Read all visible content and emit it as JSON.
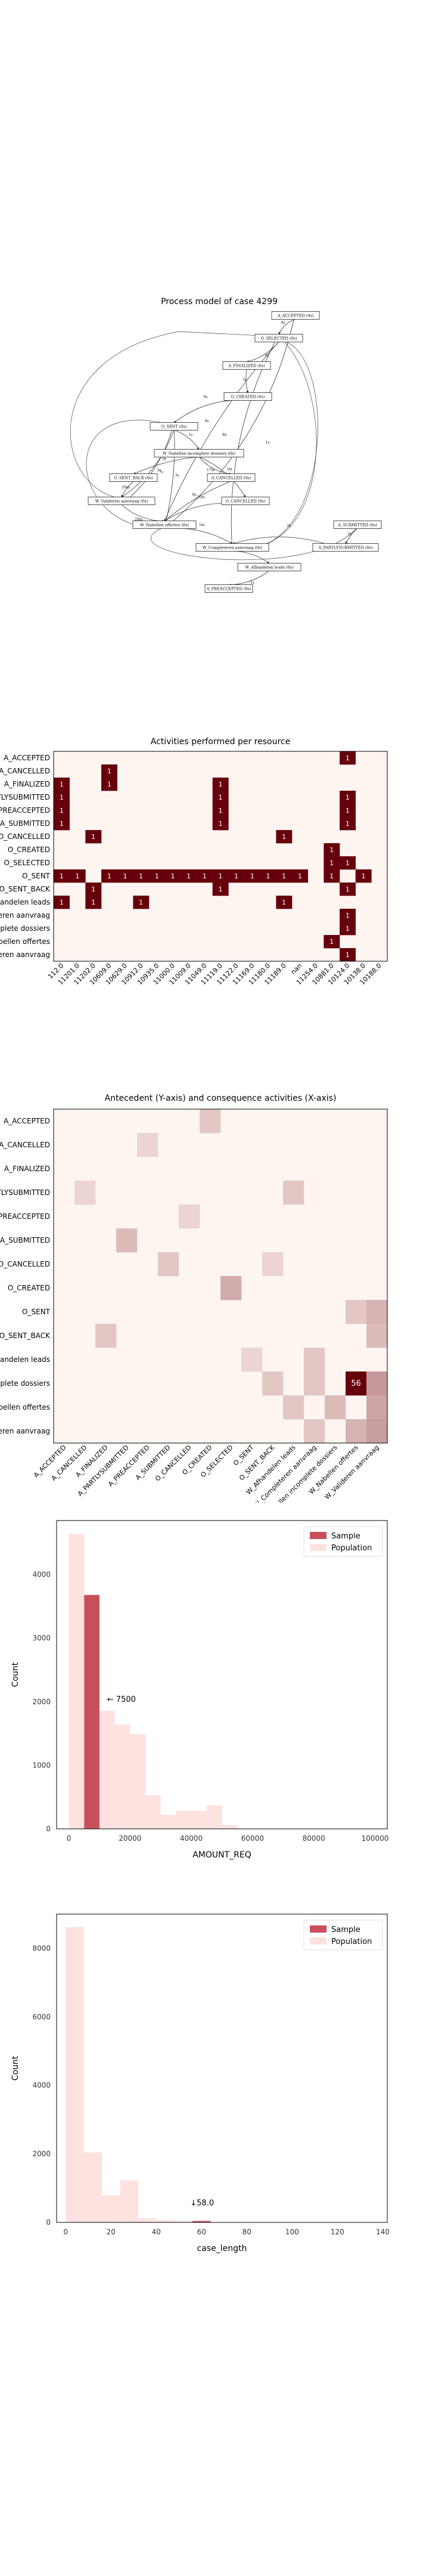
{
  "process_model": {
    "title": "Process model of case 4299",
    "nodes": [
      {
        "id": "a_accepted",
        "label": "A_ACCEPTED (0s)"
      },
      {
        "id": "o_selected",
        "label": "O_SELECTED (0s)"
      },
      {
        "id": "a_finalized",
        "label": "A_FINALIZED (0s)"
      },
      {
        "id": "o_created",
        "label": "O_CREATED (0s)"
      },
      {
        "id": "o_sent",
        "label": "O_SENT (0s)"
      },
      {
        "id": "w_nabellen_incompleet",
        "label": "W_Nabellen incomplete dossiers (0s)"
      },
      {
        "id": "o_sent_back",
        "label": "O_SENT_BACK (0s)"
      },
      {
        "id": "w_valideren",
        "label": "W_Valideren aanvraag (0s)"
      },
      {
        "id": "a_cancelled",
        "label": "A_CANCELLED (0s)"
      },
      {
        "id": "o_cancelled",
        "label": "O_CANCELLED (0s)"
      },
      {
        "id": "w_nabellen_offertes",
        "label": "W_Nabellen offertes (0s)"
      },
      {
        "id": "a_submitted",
        "label": "A_SUBMITTED (0s)"
      },
      {
        "id": "w_completeren",
        "label": "W_Completeren aanvraag (0s)"
      },
      {
        "id": "a_partlysubmitted",
        "label": "A_PARTLYSUBMITTED (0s)"
      },
      {
        "id": "w_afhandelen",
        "label": "W_Afhandelen leads (0s)"
      },
      {
        "id": "a_preaccepted",
        "label": "A_PREACCEPTED (0s)"
      }
    ],
    "edge_labels": [
      "0s",
      "0s",
      "1s",
      "0s",
      "1s",
      "0s",
      "17m",
      "1m",
      "19m",
      "28m",
      "1m",
      "0s",
      "21m",
      "20m",
      "1h",
      "3h",
      "1s",
      "3s",
      "7s",
      "4h",
      "9s",
      "1s",
      "3s"
    ]
  },
  "chart_data": [
    {
      "type": "heatmap",
      "title": "Activities performed per resource",
      "ylabels": [
        "A_ACCEPTED",
        "A_CANCELLED",
        "A_FINALIZED",
        "A_PARTLYSUBMITTED",
        "A_PREACCEPTED",
        "A_SUBMITTED",
        "O_CANCELLED",
        "O_CREATED",
        "O_SELECTED",
        "O_SENT",
        "O_SENT_BACK",
        "W_Afhandelen leads",
        "W_Completeren aanvraag",
        "W_Nabellen incomplete dossiers",
        "W_Nabellen offertes",
        "W_Valideren aanvraag"
      ],
      "xlabels": [
        "112.0",
        "11201.0",
        "11202.0",
        "10609.0",
        "10629.0",
        "10912.0",
        "10935.0",
        "11000.0",
        "11009.0",
        "11049.0",
        "11119.0",
        "11122.0",
        "11169.0",
        "11180.0",
        "11189.0",
        "nan",
        "11254.0",
        "10881.0",
        "10124.0",
        "10138.0",
        "10188.0"
      ],
      "cells": [
        {
          "row": 0,
          "col": 18,
          "value": 1
        },
        {
          "row": 1,
          "col": 3,
          "value": 1
        },
        {
          "row": 2,
          "col": 0,
          "value": 1
        },
        {
          "row": 2,
          "col": 3,
          "value": 1
        },
        {
          "row": 2,
          "col": 10,
          "value": 1
        },
        {
          "row": 3,
          "col": 0,
          "value": 1
        },
        {
          "row": 3,
          "col": 10,
          "value": 1
        },
        {
          "row": 3,
          "col": 18,
          "value": 1
        },
        {
          "row": 4,
          "col": 0,
          "value": 1
        },
        {
          "row": 4,
          "col": 10,
          "value": 1
        },
        {
          "row": 4,
          "col": 18,
          "value": 1
        },
        {
          "row": 5,
          "col": 0,
          "value": 1
        },
        {
          "row": 5,
          "col": 10,
          "value": 1
        },
        {
          "row": 5,
          "col": 18,
          "value": 1
        },
        {
          "row": 6,
          "col": 2,
          "value": 1
        },
        {
          "row": 6,
          "col": 14,
          "value": 1
        },
        {
          "row": 7,
          "col": 17,
          "value": 1
        },
        {
          "row": 8,
          "col": 17,
          "value": 1
        },
        {
          "row": 8,
          "col": 18,
          "value": 1
        },
        {
          "row": 9,
          "col": 0,
          "value": 1
        },
        {
          "row": 9,
          "col": 1,
          "value": 1
        },
        {
          "row": 9,
          "col": 3,
          "value": 1
        },
        {
          "row": 9,
          "col": 4,
          "value": 1
        },
        {
          "row": 9,
          "col": 5,
          "value": 1
        },
        {
          "row": 9,
          "col": 6,
          "value": 1
        },
        {
          "row": 9,
          "col": 7,
          "value": 1
        },
        {
          "row": 9,
          "col": 8,
          "value": 1
        },
        {
          "row": 9,
          "col": 9,
          "value": 1
        },
        {
          "row": 9,
          "col": 10,
          "value": 1
        },
        {
          "row": 9,
          "col": 11,
          "value": 1
        },
        {
          "row": 9,
          "col": 12,
          "value": 1
        },
        {
          "row": 9,
          "col": 13,
          "value": 1
        },
        {
          "row": 9,
          "col": 14,
          "value": 1
        },
        {
          "row": 9,
          "col": 15,
          "value": 1
        },
        {
          "row": 9,
          "col": 17,
          "value": 1
        },
        {
          "row": 9,
          "col": 19,
          "value": 1
        },
        {
          "row": 10,
          "col": 2,
          "value": 1
        },
        {
          "row": 10,
          "col": 10,
          "value": 1
        },
        {
          "row": 10,
          "col": 18,
          "value": 1
        },
        {
          "row": 11,
          "col": 0,
          "value": 1
        },
        {
          "row": 11,
          "col": 2,
          "value": 1
        },
        {
          "row": 11,
          "col": 5,
          "value": 1
        },
        {
          "row": 11,
          "col": 14,
          "value": 1
        },
        {
          "row": 12,
          "col": 18,
          "value": 1
        },
        {
          "row": 13,
          "col": 18,
          "value": 1
        },
        {
          "row": 14,
          "col": 17,
          "value": 1
        },
        {
          "row": 15,
          "col": 18,
          "value": 1
        }
      ],
      "max": 1
    },
    {
      "type": "heatmap",
      "title": "Antecedent (Y-axis) and consequence activities (X-axis)",
      "ylabels": [
        "A_ACCEPTED",
        "A_CANCELLED",
        "A_FINALIZED",
        "A_PARTLYSUBMITTED",
        "A_PREACCEPTED",
        "A_SUBMITTED",
        "O_CANCELLED",
        "O_CREATED",
        "O_SENT",
        "O_SENT_BACK",
        "W_Afhandelen leads",
        "W_Nabellen incomplete dossiers",
        "W_Nabellen offertes",
        "W_Valideren aanvraag"
      ],
      "xlabels": [
        "A_ACCEPTED",
        "A_CANCELLED",
        "A_FINALIZED",
        "A_PARTLYSUBMITTED",
        "A_PREACCEPTED",
        "A_SUBMITTED",
        "O_CANCELLED",
        "O_CREATED",
        "O_SELECTED",
        "O_SENT",
        "O_SENT_BACK",
        "W_Afhandelen leads",
        "W_Completeren aanvraag",
        "W_Nabellen incomplete dossiers",
        "W_Nabellen offertes",
        "W_Valideren aanvraag"
      ],
      "cells": [
        {
          "row": 0,
          "col": 7,
          "value": 2
        },
        {
          "row": 1,
          "col": 4,
          "value": 1
        },
        {
          "row": 3,
          "col": 1,
          "value": 1
        },
        {
          "row": 3,
          "col": 11,
          "value": 2
        },
        {
          "row": 4,
          "col": 6,
          "value": 1
        },
        {
          "row": 5,
          "col": 3,
          "value": 3
        },
        {
          "row": 6,
          "col": 5,
          "value": 2
        },
        {
          "row": 6,
          "col": 10,
          "value": 1
        },
        {
          "row": 7,
          "col": 8,
          "value": 5
        },
        {
          "row": 8,
          "col": 15,
          "value": 4
        },
        {
          "row": 8,
          "col": 14,
          "value": 2
        },
        {
          "row": 9,
          "col": 2,
          "value": 2
        },
        {
          "row": 9,
          "col": 15,
          "value": 3
        },
        {
          "row": 10,
          "col": 9,
          "value": 1
        },
        {
          "row": 10,
          "col": 12,
          "value": 2
        },
        {
          "row": 11,
          "col": 14,
          "value": 56
        },
        {
          "row": 11,
          "col": 15,
          "value": 8
        },
        {
          "row": 11,
          "col": 10,
          "value": 2
        },
        {
          "row": 11,
          "col": 12,
          "value": 2
        },
        {
          "row": 12,
          "col": 13,
          "value": 3
        },
        {
          "row": 12,
          "col": 15,
          "value": 6
        },
        {
          "row": 12,
          "col": 11,
          "value": 2
        },
        {
          "row": 13,
          "col": 14,
          "value": 4
        },
        {
          "row": 13,
          "col": 15,
          "value": 7
        },
        {
          "row": 13,
          "col": 12,
          "value": 2
        }
      ],
      "annotated_value": 56,
      "max": 56
    },
    {
      "type": "bar",
      "xlabel": "AMOUNT_REQ",
      "ylabel": "Count",
      "legend": [
        "Sample",
        "Population"
      ],
      "legend_placement": "top-right",
      "xlim": [
        -4000,
        104000
      ],
      "ylim": [
        0,
        4850
      ],
      "xticks": [
        "0",
        "20000",
        "40000",
        "60000",
        "80000",
        "100000"
      ],
      "yticks": [
        "0",
        "1000",
        "2000",
        "3000",
        "4000"
      ],
      "bin_width": 5000,
      "population": {
        "bin_starts": [
          0,
          5000,
          10000,
          15000,
          20000,
          25000,
          30000,
          35000,
          40000,
          45000,
          50000
        ],
        "values": [
          4640,
          2900,
          1860,
          1640,
          1490,
          530,
          220,
          280,
          280,
          370,
          60
        ]
      },
      "sample": {
        "bin_starts": [
          5000
        ],
        "values": [
          3680
        ]
      },
      "annotation": "← 7500"
    },
    {
      "type": "bar",
      "xlabel": "case_length",
      "ylabel": "Count",
      "legend": [
        "Sample",
        "Population"
      ],
      "legend_placement": "top-right",
      "xlim": [
        -4,
        142
      ],
      "ylim": [
        0,
        9000
      ],
      "xticks": [
        "0",
        "20",
        "40",
        "60",
        "80",
        "100",
        "120",
        "140"
      ],
      "yticks": [
        "0",
        "2000",
        "4000",
        "6000",
        "8000"
      ],
      "bin_width": 8,
      "population": {
        "bin_starts": [
          0,
          8,
          16,
          24,
          32,
          40,
          48,
          56
        ],
        "values": [
          8620,
          2040,
          790,
          1230,
          120,
          60,
          40,
          60
        ]
      },
      "sample": {
        "bin_starts": [
          56
        ],
        "values": [
          40
        ]
      },
      "annotation": "↓58.0"
    }
  ]
}
